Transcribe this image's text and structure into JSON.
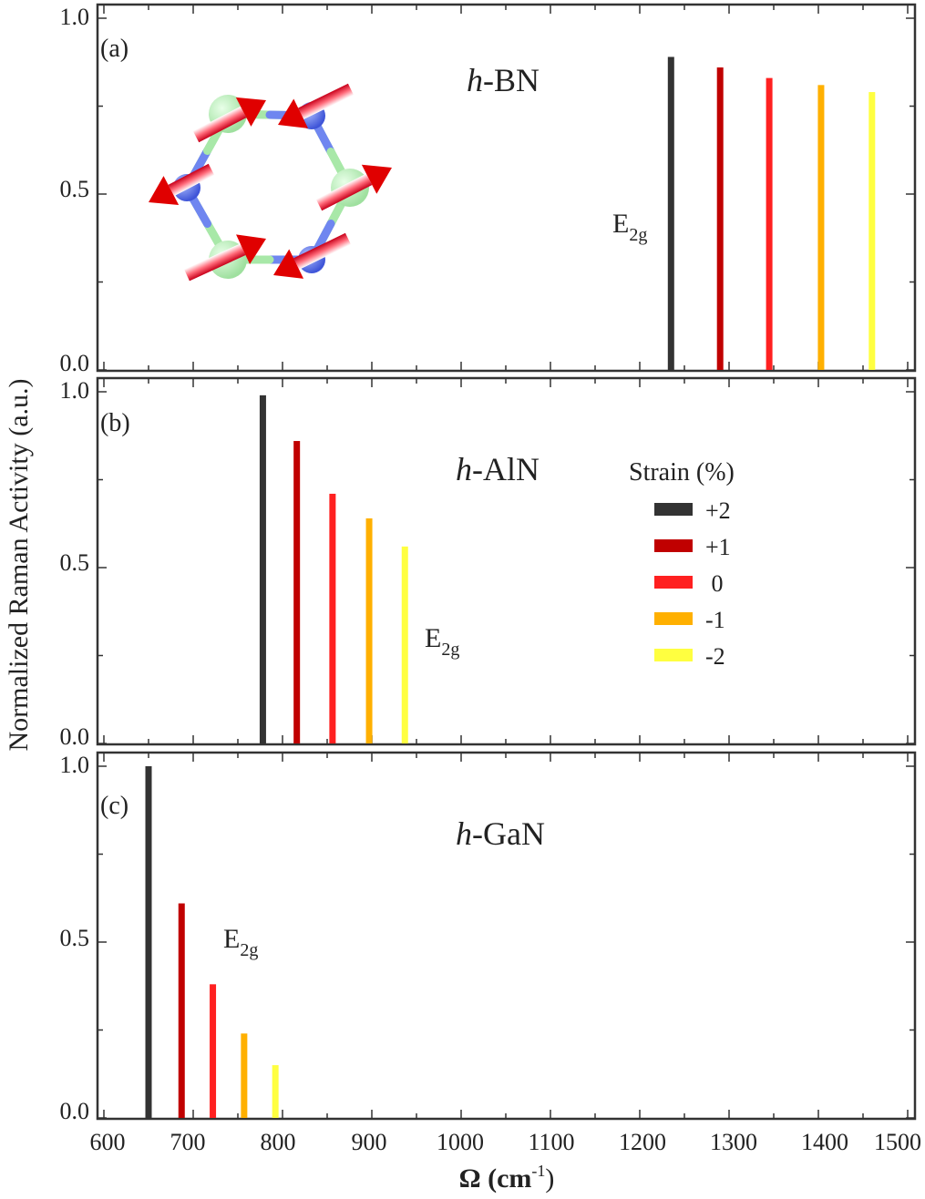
{
  "chart_data": {
    "type": "bar",
    "ylabel": "Normalized Raman Activity (a.u.)",
    "xlabel": "Ω (cm",
    "xlabel_sup": "-1",
    "xlabel_close": ")",
    "xlim": [
      600,
      1500
    ],
    "ylim": [
      0,
      1.0
    ],
    "x_ticks": [
      600,
      700,
      800,
      900,
      1000,
      1100,
      1200,
      1300,
      1400,
      1500
    ],
    "x_tick_labels": [
      "600",
      "700",
      "800",
      "900",
      "1000",
      "1100",
      "1200",
      "1300",
      "1400",
      "1500"
    ],
    "y_tick_labels": [
      "0.0",
      "0.5",
      "1.0"
    ],
    "legend": {
      "title": "Strain (%)",
      "location": "middle-right of panel (b)",
      "entries": [
        {
          "label": "+2",
          "color": "#333333"
        },
        {
          "label": "+1",
          "color": "#c00000"
        },
        {
          "label": " 0",
          "color": "#ff2020"
        },
        {
          "label": "-1",
          "color": "#ffb000"
        },
        {
          "label": "-2",
          "color": "#ffff40"
        }
      ]
    },
    "panels": [
      {
        "label": "(a)",
        "material_italic": "h",
        "material_rest": "-BN",
        "mode_main": "E",
        "mode_sub": "2g",
        "series": [
          {
            "strain": "+2",
            "x": 1235,
            "y": 0.89
          },
          {
            "strain": "+1",
            "x": 1290,
            "y": 0.86
          },
          {
            "strain": "0",
            "x": 1345,
            "y": 0.83
          },
          {
            "strain": "-1",
            "x": 1403,
            "y": 0.81
          },
          {
            "strain": "-2",
            "x": 1460,
            "y": 0.79
          }
        ]
      },
      {
        "label": "(b)",
        "material_italic": "h",
        "material_rest": "-AlN",
        "mode_main": "E",
        "mode_sub": "2g",
        "series": [
          {
            "strain": "+2",
            "x": 778,
            "y": 0.99
          },
          {
            "strain": "+1",
            "x": 816,
            "y": 0.86
          },
          {
            "strain": "0",
            "x": 856,
            "y": 0.71
          },
          {
            "strain": "-1",
            "x": 897,
            "y": 0.64
          },
          {
            "strain": "-2",
            "x": 937,
            "y": 0.56
          }
        ]
      },
      {
        "label": "(c)",
        "material_italic": "h",
        "material_rest": "-GaN",
        "mode_main": "E",
        "mode_sub": "2g",
        "series": [
          {
            "strain": "+2",
            "x": 650,
            "y": 1.0
          },
          {
            "strain": "+1",
            "x": 687,
            "y": 0.61
          },
          {
            "strain": "0",
            "x": 722,
            "y": 0.38
          },
          {
            "strain": "-1",
            "x": 757,
            "y": 0.24
          },
          {
            "strain": "-2",
            "x": 792,
            "y": 0.15
          }
        ]
      }
    ]
  }
}
